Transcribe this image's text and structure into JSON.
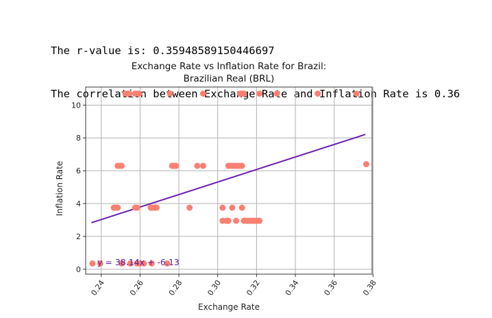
{
  "output": {
    "line1": "The r-value is: 0.35948589150446697",
    "line2": "The correlation between Exchange Rate and Inflation Rate is 0.36"
  },
  "chart_data": {
    "type": "scatter",
    "title_line1": "Exchange Rate vs Inflation Rate for Brazil:",
    "title_line2": "Brazilian Real (BRL)",
    "xlabel": "Exchange Rate",
    "ylabel": "Inflation Rate",
    "xlim": [
      0.232,
      0.3795
    ],
    "ylim": [
      -0.3,
      11.1
    ],
    "xticks": [
      "0.24",
      "0.26",
      "0.28",
      "0.30",
      "0.32",
      "0.34",
      "0.36",
      "0.38"
    ],
    "xtick_values": [
      0.24,
      0.26,
      0.28,
      0.3,
      0.32,
      0.34,
      0.36,
      0.38
    ],
    "yticks": [
      "0",
      "2",
      "4",
      "6",
      "8",
      "10"
    ],
    "ytick_values": [
      0,
      2,
      4,
      6,
      8,
      10
    ],
    "grid": true,
    "point_color": "#fa8072",
    "line_color": "#6a1fb0",
    "equation": "y = 38.14x + -6.13",
    "regression": {
      "slope": 38.14,
      "intercept": -6.13,
      "x_range": [
        0.235,
        0.376
      ]
    },
    "points": [
      [
        0.2355,
        0.35
      ],
      [
        0.2395,
        0.35
      ],
      [
        0.2505,
        0.35
      ],
      [
        0.255,
        0.35
      ],
      [
        0.2585,
        0.35
      ],
      [
        0.26,
        0.35
      ],
      [
        0.262,
        0.35
      ],
      [
        0.266,
        0.35
      ],
      [
        0.274,
        0.35
      ],
      [
        0.2465,
        3.75
      ],
      [
        0.2475,
        3.75
      ],
      [
        0.2485,
        3.75
      ],
      [
        0.2575,
        3.75
      ],
      [
        0.2585,
        3.75
      ],
      [
        0.2655,
        3.75
      ],
      [
        0.2665,
        3.75
      ],
      [
        0.2675,
        3.75
      ],
      [
        0.2685,
        3.75
      ],
      [
        0.2855,
        3.75
      ],
      [
        0.3025,
        3.75
      ],
      [
        0.3075,
        3.75
      ],
      [
        0.3125,
        3.75
      ],
      [
        0.2485,
        6.3
      ],
      [
        0.2495,
        6.3
      ],
      [
        0.2505,
        6.3
      ],
      [
        0.2765,
        6.3
      ],
      [
        0.2775,
        6.3
      ],
      [
        0.2785,
        6.3
      ],
      [
        0.2895,
        6.3
      ],
      [
        0.2925,
        6.3
      ],
      [
        0.3055,
        6.3
      ],
      [
        0.3065,
        6.3
      ],
      [
        0.3075,
        6.3
      ],
      [
        0.3085,
        6.3
      ],
      [
        0.3095,
        6.3
      ],
      [
        0.3105,
        6.3
      ],
      [
        0.3115,
        6.3
      ],
      [
        0.3125,
        6.3
      ],
      [
        0.3765,
        6.4
      ],
      [
        0.3025,
        2.95
      ],
      [
        0.3045,
        2.95
      ],
      [
        0.3055,
        2.95
      ],
      [
        0.3095,
        2.95
      ],
      [
        0.3135,
        2.95
      ],
      [
        0.3145,
        2.95
      ],
      [
        0.3155,
        2.95
      ],
      [
        0.3165,
        2.95
      ],
      [
        0.3175,
        2.95
      ],
      [
        0.3185,
        2.95
      ],
      [
        0.3195,
        2.95
      ],
      [
        0.3205,
        2.95
      ],
      [
        0.3215,
        2.95
      ],
      [
        0.2525,
        10.7
      ],
      [
        0.2535,
        10.7
      ],
      [
        0.2545,
        10.7
      ],
      [
        0.2575,
        10.7
      ],
      [
        0.2585,
        10.7
      ],
      [
        0.2595,
        10.7
      ],
      [
        0.2755,
        10.7
      ],
      [
        0.2925,
        10.7
      ],
      [
        0.3115,
        10.7
      ],
      [
        0.3125,
        10.7
      ],
      [
        0.3135,
        10.7
      ],
      [
        0.3215,
        10.7
      ],
      [
        0.3305,
        10.7
      ],
      [
        0.3515,
        10.7
      ],
      [
        0.3715,
        10.7
      ]
    ]
  }
}
